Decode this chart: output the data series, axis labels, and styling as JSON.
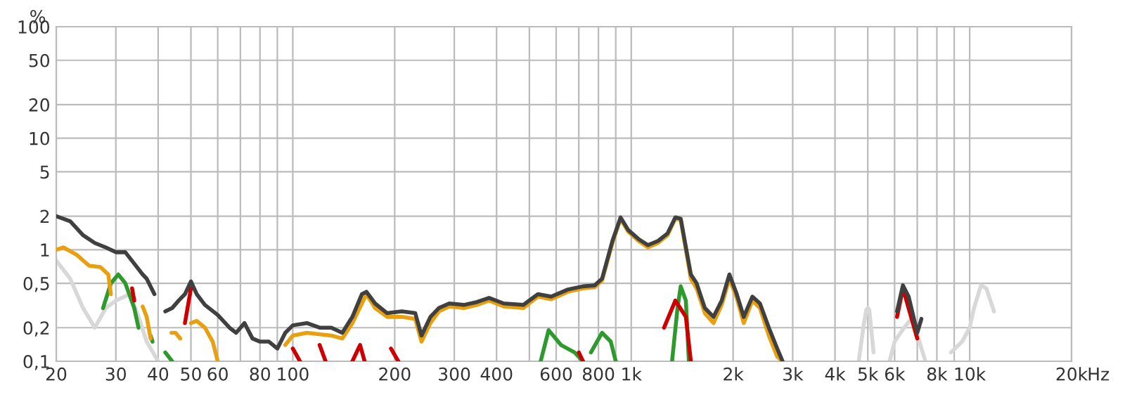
{
  "chart_data": {
    "type": "line",
    "ylabel": "%",
    "log": "xy",
    "grid": true,
    "xlabel": "Hz",
    "marker": "none",
    "line_style": "solid",
    "xlim": [
      20,
      20000
    ],
    "ylim": [
      0.1,
      100
    ],
    "xticks": [
      20,
      30,
      40,
      50,
      60,
      {
        "value": 70,
        "label": null
      },
      80,
      {
        "value": 90,
        "label": null
      },
      100,
      200,
      300,
      400,
      {
        "value": 500,
        "label": null
      },
      600,
      {
        "value": 700,
        "label": null
      },
      800,
      {
        "value": 900,
        "label": null
      },
      {
        "value": 1000,
        "label": "1k"
      },
      {
        "value": 2000,
        "label": "2k"
      },
      {
        "value": 3000,
        "label": "3k"
      },
      {
        "value": 4000,
        "label": "4k"
      },
      {
        "value": 5000,
        "label": "5k"
      },
      {
        "value": 6000,
        "label": "6k"
      },
      {
        "value": 7000,
        "label": null
      },
      {
        "value": 8000,
        "label": "8k"
      },
      {
        "value": 9000,
        "label": null
      },
      {
        "value": 10000,
        "label": "10k"
      },
      {
        "value": 20000,
        "label": "20k"
      }
    ],
    "yticks": [
      {
        "value": 0.1,
        "label": "0,1"
      },
      {
        "value": 0.2,
        "label": "0,2"
      },
      {
        "value": 0.5,
        "label": "0,5"
      },
      1,
      2,
      5,
      10,
      20,
      50,
      100
    ],
    "series": [
      {
        "color": "#d8d8d8",
        "x": [
          20,
          22,
          24,
          26,
          28,
          30,
          33,
          35,
          37,
          40,
          41,
          4700,
          4850,
          4950,
          5000,
          5050,
          5200,
          5300,
          5800,
          6000,
          6400,
          6800,
          7100,
          7400,
          7500,
          8800,
          9500,
          10000,
          10300,
          10800,
          11200,
          11800
        ],
        "values": [
          0.8,
          0.55,
          0.3,
          0.2,
          0.3,
          0.35,
          0.4,
          0.25,
          0.15,
          0.1,
          null,
          0.1,
          0.2,
          0.29,
          0.3,
          0.29,
          0.12,
          null,
          0.1,
          0.15,
          0.2,
          0.25,
          0.15,
          0.1,
          null,
          0.12,
          0.15,
          0.2,
          0.3,
          0.48,
          0.45,
          0.28
        ]
      },
      {
        "color": "#2e9a2e",
        "x": [
          27.5,
          29,
          30.5,
          32,
          34,
          35,
          36,
          38,
          38.5,
          39,
          42,
          44,
          45,
          540,
          570,
          620,
          680,
          720,
          740,
          760,
          820,
          870,
          900,
          1000,
          1320,
          1370,
          1400,
          1450,
          1480
        ],
        "values": [
          0.3,
          0.5,
          0.6,
          0.5,
          0.3,
          0.2,
          null,
          0.17,
          0.15,
          null,
          0.12,
          0.1,
          null,
          0.1,
          0.19,
          0.14,
          0.12,
          0.1,
          null,
          0.12,
          0.18,
          0.15,
          0.1,
          null,
          0.1,
          0.3,
          0.47,
          0.35,
          0.1
        ]
      },
      {
        "color": "#cc0000",
        "x": [
          33.5,
          34,
          40,
          48,
          50,
          60,
          100,
          105,
          110,
          120,
          125,
          130,
          150,
          158,
          163,
          170,
          195,
          205,
          300,
          700,
          720,
          1000,
          1250,
          1350,
          1450,
          1500,
          3000,
          6100,
          6350,
          7000
        ],
        "values": [
          0.45,
          0.35,
          null,
          0.22,
          0.45,
          null,
          0.13,
          0.1,
          null,
          0.14,
          0.1,
          null,
          0.1,
          0.14,
          0.1,
          null,
          0.13,
          0.1,
          null,
          0.12,
          0.1,
          null,
          0.2,
          0.35,
          0.25,
          0.1,
          null,
          0.25,
          0.45,
          0.16
        ]
      },
      {
        "color": "#e8a010",
        "x": [
          20,
          21,
          23,
          25,
          27,
          28.5,
          29,
          32,
          36,
          37,
          38,
          40,
          43.8,
          45,
          46.5,
          47,
          50,
          52,
          55,
          58,
          60,
          65,
          95,
          100,
          110,
          130,
          140,
          150,
          165,
          175,
          190,
          210,
          230,
          240,
          255,
          270,
          290,
          320,
          350,
          380,
          420,
          480,
          530,
          580,
          650,
          720,
          780,
          820,
          880,
          930,
          980,
          1050,
          1120,
          1200,
          1280,
          1350,
          1400,
          1500,
          1560,
          1650,
          1750,
          1850,
          1950,
          2050,
          2150,
          2280,
          2400,
          2550,
          2700,
          2800
        ],
        "values": [
          1.0,
          1.05,
          0.9,
          0.72,
          0.7,
          0.6,
          0.4,
          null,
          0.31,
          0.25,
          0.16,
          null,
          0.18,
          0.18,
          0.16,
          null,
          0.22,
          0.23,
          0.2,
          0.15,
          0.1,
          null,
          0.14,
          0.17,
          0.18,
          0.17,
          0.16,
          0.22,
          0.4,
          0.3,
          0.25,
          0.25,
          0.24,
          0.15,
          0.22,
          0.28,
          0.31,
          0.3,
          0.32,
          0.35,
          0.31,
          0.3,
          0.38,
          0.36,
          0.42,
          0.45,
          0.46,
          0.53,
          1.15,
          1.9,
          1.45,
          1.2,
          1.05,
          1.15,
          1.35,
          1.9,
          1.85,
          0.55,
          0.45,
          0.27,
          0.22,
          0.32,
          0.55,
          0.37,
          0.22,
          0.35,
          0.3,
          0.17,
          0.11,
          0.1
        ]
      },
      {
        "color": "#404040",
        "x": [
          20,
          22,
          24,
          26,
          28,
          30,
          32,
          34,
          36,
          37,
          39,
          40,
          42,
          44,
          46,
          48,
          50,
          52,
          55,
          60,
          65,
          68,
          72,
          76,
          80,
          85,
          90,
          95,
          100,
          110,
          120,
          130,
          140,
          150,
          160,
          165,
          175,
          190,
          210,
          230,
          240,
          255,
          270,
          290,
          320,
          350,
          380,
          420,
          480,
          530,
          580,
          650,
          720,
          780,
          820,
          880,
          930,
          980,
          1050,
          1120,
          1200,
          1280,
          1350,
          1400,
          1500,
          1560,
          1650,
          1750,
          1850,
          1950,
          2050,
          2150,
          2280,
          2400,
          2550,
          2700,
          2800,
          3000,
          6100,
          6350,
          6600,
          7000,
          7200
        ],
        "values": [
          2.0,
          1.8,
          1.35,
          1.15,
          1.05,
          0.95,
          0.95,
          0.75,
          0.6,
          0.55,
          0.4,
          null,
          0.28,
          0.3,
          0.35,
          0.4,
          0.52,
          0.4,
          0.32,
          0.26,
          0.2,
          0.18,
          0.22,
          0.16,
          0.15,
          0.15,
          0.13,
          0.18,
          0.21,
          0.22,
          0.2,
          0.2,
          0.18,
          0.25,
          0.4,
          0.42,
          0.33,
          0.27,
          0.28,
          0.27,
          0.17,
          0.25,
          0.3,
          0.33,
          0.32,
          0.34,
          0.37,
          0.33,
          0.32,
          0.4,
          0.38,
          0.44,
          0.47,
          0.48,
          0.55,
          1.2,
          1.95,
          1.5,
          1.25,
          1.1,
          1.2,
          1.4,
          1.95,
          1.9,
          0.6,
          0.5,
          0.3,
          0.25,
          0.35,
          0.6,
          0.4,
          0.25,
          0.38,
          0.33,
          0.2,
          0.13,
          0.1,
          null,
          0.28,
          0.48,
          0.38,
          0.18,
          0.24
        ]
      }
    ]
  }
}
